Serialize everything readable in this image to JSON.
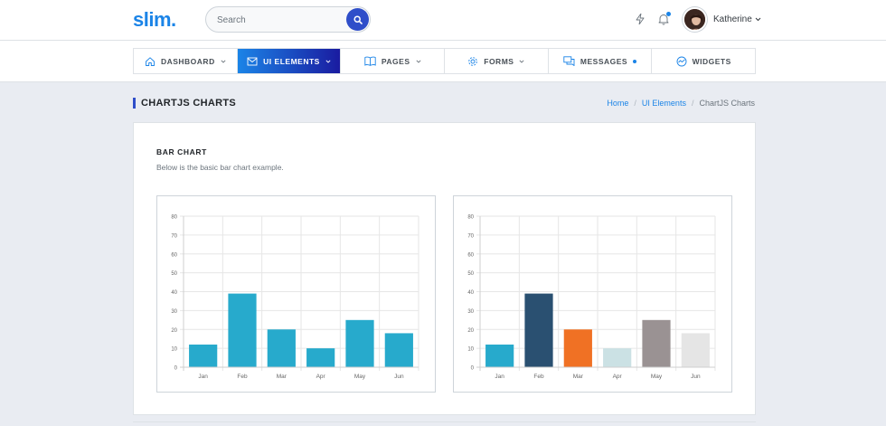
{
  "header": {
    "logo": "slim.",
    "search_placeholder": "Search",
    "user_name": "Katherine",
    "accent": "#1b84e7",
    "search_button_color": "#2f4ec9"
  },
  "nav": {
    "items": [
      {
        "label": "DASHBOARD",
        "icon": "home-icon",
        "has_caret": true
      },
      {
        "label": "UI ELEMENTS",
        "icon": "envelope-icon",
        "has_caret": true,
        "active": true
      },
      {
        "label": "PAGES",
        "icon": "book-icon",
        "has_caret": true
      },
      {
        "label": "FORMS",
        "icon": "gear-icon",
        "has_caret": true
      },
      {
        "label": "MESSAGES",
        "icon": "chat-icon",
        "has_dot": true
      },
      {
        "label": "WIDGETS",
        "icon": "gauge-icon"
      }
    ]
  },
  "page": {
    "title": "CHARTJS CHARTS",
    "breadcrumb": [
      "Home",
      "UI Elements",
      "ChartJS Charts"
    ]
  },
  "card": {
    "title": "BAR CHART",
    "subtitle": "Below is the basic bar chart example."
  },
  "chart_data": [
    {
      "type": "bar",
      "categories": [
        "Jan",
        "Feb",
        "Mar",
        "Apr",
        "May",
        "Jun"
      ],
      "values": [
        12,
        39,
        20,
        10,
        25,
        18
      ],
      "ylim": [
        0,
        80
      ],
      "yticks": [
        0,
        10,
        20,
        30,
        40,
        50,
        60,
        70,
        80
      ],
      "colors": [
        "#27aacc",
        "#27aacc",
        "#27aacc",
        "#27aacc",
        "#27aacc",
        "#27aacc"
      ],
      "grid": true,
      "legend": "none"
    },
    {
      "type": "bar",
      "categories": [
        "Jan",
        "Feb",
        "Mar",
        "Apr",
        "May",
        "Jun"
      ],
      "values": [
        12,
        39,
        20,
        10,
        25,
        18
      ],
      "ylim": [
        0,
        80
      ],
      "yticks": [
        0,
        10,
        20,
        30,
        40,
        50,
        60,
        70,
        80
      ],
      "colors": [
        "#27aacc",
        "#2a5071",
        "#f07124",
        "#cbe1e4",
        "#9a9293",
        "#e5e5e5"
      ],
      "grid": true,
      "legend": "none"
    }
  ]
}
